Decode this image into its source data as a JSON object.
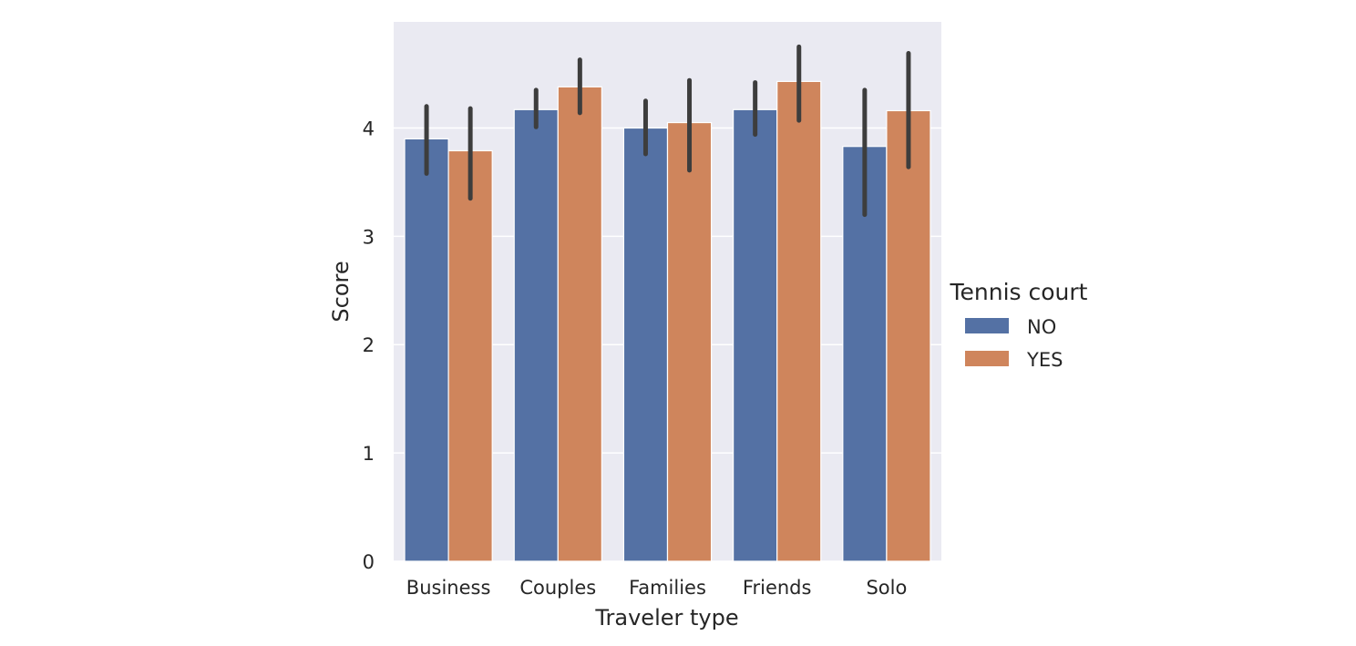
{
  "chart_data": {
    "type": "bar",
    "categories": [
      "Business",
      "Couples",
      "Families",
      "Friends",
      "Solo"
    ],
    "series": [
      {
        "name": "NO",
        "values": [
          3.9,
          4.17,
          4.0,
          4.17,
          3.83
        ],
        "ci_low": [
          3.58,
          4.01,
          3.76,
          3.94,
          3.2
        ],
        "ci_high": [
          4.2,
          4.35,
          4.25,
          4.42,
          4.35
        ]
      },
      {
        "name": "YES",
        "values": [
          3.79,
          4.38,
          4.05,
          4.43,
          4.16
        ],
        "ci_low": [
          3.35,
          4.14,
          3.61,
          4.07,
          3.64
        ],
        "ci_high": [
          4.18,
          4.63,
          4.44,
          4.75,
          4.69
        ]
      }
    ],
    "xlabel": "Traveler type",
    "ylabel": "Score",
    "ylim": [
      0,
      4.98
    ],
    "yticks": [
      0,
      1,
      2,
      3,
      4
    ],
    "grid": true,
    "legend": {
      "title": "Tennis court",
      "placement": "right"
    },
    "colors": {
      "NO": "#5471a4",
      "YES": "#cf855c",
      "background": "#eaeaf2",
      "grid": "#ffffff",
      "errorbar": "#3d3d3d"
    }
  }
}
